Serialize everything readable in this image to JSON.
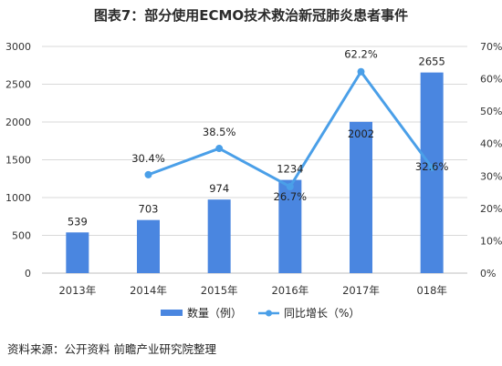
{
  "title": "图表7：部分使用ECMO技术救治新冠肺炎患者事件",
  "source": "资料来源：公开资料 前瞻产业研究院整理",
  "colors": {
    "bar": "#4a86e0",
    "line": "#4a9fe8",
    "grid": "#d9d9d9",
    "axis": "#bfbfbf"
  },
  "chart_data": {
    "type": "bar+line",
    "categories": [
      "2013年",
      "2014年",
      "2015年",
      "2016年",
      "2017年",
      "018年"
    ],
    "series": [
      {
        "name": "数量（例）",
        "type": "bar",
        "axis": "left",
        "values": [
          539,
          703,
          974,
          1234,
          2002,
          2655
        ],
        "labels": [
          "539",
          "703",
          "974",
          "1234",
          "2002",
          "2655"
        ]
      },
      {
        "name": "同比增长（%）",
        "type": "line",
        "axis": "right",
        "values": [
          null,
          30.4,
          38.5,
          26.7,
          62.2,
          32.6
        ],
        "labels": [
          "",
          "30.4%",
          "38.5%",
          "26.7%",
          "62.2%",
          "32.6%"
        ]
      }
    ],
    "y_left": {
      "range": [
        0,
        3000
      ],
      "ticks": [
        0,
        500,
        1000,
        1500,
        2000,
        2500,
        3000
      ],
      "tick_labels": [
        "0",
        "500",
        "1000",
        "1500",
        "2000",
        "2500",
        "3000"
      ]
    },
    "y_right": {
      "range": [
        0,
        70
      ],
      "ticks": [
        0,
        10,
        20,
        30,
        40,
        50,
        60,
        70
      ],
      "tick_labels": [
        "0%",
        "10%",
        "20%",
        "30%",
        "40%",
        "50%",
        "60%",
        "70%"
      ]
    },
    "grid": true,
    "legend": "bottom"
  }
}
